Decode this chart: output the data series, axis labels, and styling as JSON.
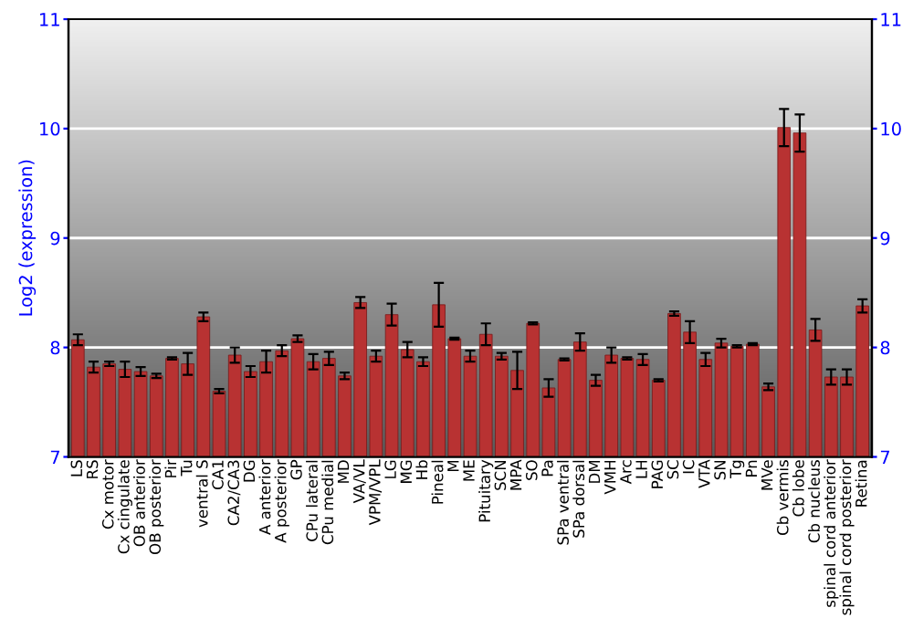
{
  "chart_data": {
    "type": "bar",
    "ylabel": "Log2 (expression)",
    "categories": [
      "LS",
      "RS",
      "Cx motor",
      "Cx cingulate",
      "OB anterior",
      "OB posterior",
      "Pir",
      "Tu",
      "ventral S",
      "CA1",
      "CA2/CA3",
      "DG",
      "A anterior",
      "A posterior",
      "GP",
      "CPu lateral",
      "CPu medial",
      "MD",
      "VA/VL",
      "VPM/VPL",
      "LG",
      "MG",
      "Hb",
      "Pineal",
      "M",
      "ME",
      "Pituitary",
      "SCN",
      "MPA",
      "SO",
      "Pa",
      "SPa ventral",
      "SPa dorsal",
      "DM",
      "VMH",
      "Arc",
      "LH",
      "PAG",
      "SC",
      "IC",
      "VTA",
      "SN",
      "Tg",
      "Pn",
      "MVe",
      "Cb vermis",
      "Cb lobe",
      "Cb nucleus",
      "spinal cord anterior",
      "spinal cord posterior",
      "Retina"
    ],
    "values": [
      8.07,
      7.82,
      7.85,
      7.8,
      7.78,
      7.74,
      7.9,
      7.85,
      8.28,
      7.6,
      7.93,
      7.78,
      7.87,
      7.97,
      8.08,
      7.87,
      7.9,
      7.74,
      8.41,
      7.92,
      8.3,
      7.98,
      7.87,
      8.39,
      8.08,
      7.92,
      8.12,
      7.92,
      7.79,
      8.22,
      7.63,
      7.89,
      8.05,
      7.7,
      7.93,
      7.9,
      7.89,
      7.7,
      8.31,
      8.14,
      7.89,
      8.04,
      8.01,
      8.03,
      7.64,
      10.01,
      9.96,
      8.16,
      7.73,
      7.73,
      8.38
    ],
    "errors": [
      0.05,
      0.05,
      0.02,
      0.07,
      0.04,
      0.02,
      0.01,
      0.1,
      0.04,
      0.02,
      0.07,
      0.05,
      0.1,
      0.05,
      0.03,
      0.07,
      0.06,
      0.03,
      0.05,
      0.05,
      0.1,
      0.07,
      0.04,
      0.2,
      0.01,
      0.05,
      0.1,
      0.03,
      0.17,
      0.01,
      0.08,
      0.01,
      0.08,
      0.05,
      0.07,
      0.01,
      0.05,
      0.01,
      0.02,
      0.1,
      0.06,
      0.04,
      0.01,
      0.01,
      0.03,
      0.17,
      0.17,
      0.1,
      0.07,
      0.07,
      0.06
    ],
    "color": "#b83232",
    "ylim": [
      7,
      11
    ],
    "yticks": [
      7,
      8,
      9,
      10,
      11
    ],
    "y2lim": [
      7,
      11
    ],
    "y2ticks": [
      7,
      8,
      9,
      10,
      11
    ],
    "grid": "y"
  }
}
